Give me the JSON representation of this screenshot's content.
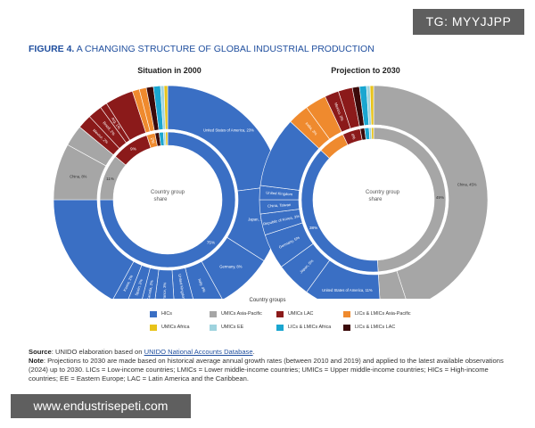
{
  "tag": "TG: MYYJJPP",
  "figure": {
    "label": "FIGURE 4.",
    "title": "A CHANGING STRUCTURE OF GLOBAL INDUSTRIAL PRODUCTION"
  },
  "colors": {
    "HICs": "#3a6fc4",
    "UMICs Asia-Pacific": "#a6a6a6",
    "UMICs LAC": "#8b1a1a",
    "LICs & LMICs Asia-Pacific": "#ef8a2e",
    "UMICs Africa": "#e8c31a",
    "UMICs EE": "#9ed3de",
    "LICs & LMICs Africa": "#1aa6d0",
    "LICs & LMICs LAC": "#3b0a0a"
  },
  "chart_data": [
    {
      "type": "pie",
      "title": "Situation in 2000",
      "center_label": "Country group share",
      "inner_ring": [
        {
          "group": "HICs",
          "value": 75,
          "label": "75%"
        },
        {
          "group": "UMICs Asia-Pacific",
          "value": 11,
          "label": "11%"
        },
        {
          "group": "UMICs LAC",
          "value": 9,
          "label": "9%"
        },
        {
          "group": "LICs & LMICs Asia-Pacific",
          "value": 2,
          "label": "2%"
        },
        {
          "group": "LICs & LMICs LAC",
          "value": 1,
          "label": ""
        },
        {
          "group": "LICs & LMICs Africa",
          "value": 1,
          "label": ""
        },
        {
          "group": "UMICs EE",
          "value": 0.5,
          "label": ""
        },
        {
          "group": "UMICs Africa",
          "value": 0.5,
          "label": ""
        }
      ],
      "outer_ring": [
        {
          "group": "HICs",
          "value": 23,
          "label": "United States of America, 23%"
        },
        {
          "group": "HICs",
          "value": 11,
          "label": "Japan, 11%"
        },
        {
          "group": "HICs",
          "value": 8,
          "label": "Germany, 8%"
        },
        {
          "group": "HICs",
          "value": 4,
          "label": "Italy, 4%"
        },
        {
          "group": "HICs",
          "value": 3,
          "label": "United Kingdom, 3%"
        },
        {
          "group": "HICs",
          "value": 3,
          "label": "France, 3%"
        },
        {
          "group": "HICs",
          "value": 2,
          "label": "Canada, 2%"
        },
        {
          "group": "HICs",
          "value": 2,
          "label": "Spain, 2%"
        },
        {
          "group": "HICs",
          "value": 2,
          "label": "Korea, 2%"
        },
        {
          "group": "HICs",
          "value": 17,
          "label": ""
        },
        {
          "group": "UMICs Asia-Pacific",
          "value": 8,
          "label": "China, 8%"
        },
        {
          "group": "UMICs Asia-Pacific",
          "value": 3,
          "label": ""
        },
        {
          "group": "UMICs LAC",
          "value": 2,
          "label": "Mexico, 2%"
        },
        {
          "group": "UMICs LAC",
          "value": 2,
          "label": "Brazil, 2%"
        },
        {
          "group": "UMICs LAC",
          "value": 1,
          "label": "Arg, 1%"
        },
        {
          "group": "UMICs LAC",
          "value": 4,
          "label": ""
        },
        {
          "group": "LICs & LMICs Asia-Pacific",
          "value": 1,
          "label": ""
        },
        {
          "group": "LICs & LMICs Asia-Pacific",
          "value": 1,
          "label": ""
        },
        {
          "group": "LICs & LMICs LAC",
          "value": 1,
          "label": ""
        },
        {
          "group": "LICs & LMICs Africa",
          "value": 1,
          "label": ""
        },
        {
          "group": "UMICs EE",
          "value": 0.5,
          "label": ""
        },
        {
          "group": "UMICs Africa",
          "value": 0.5,
          "label": ""
        }
      ]
    },
    {
      "type": "pie",
      "title": "Projection to 2030",
      "center_label": "Country group share",
      "inner_ring": [
        {
          "group": "UMICs Asia-Pacific",
          "value": 49,
          "label": "49%"
        },
        {
          "group": "HICs",
          "value": 38,
          "label": "38%"
        },
        {
          "group": "LICs & LMICs Asia-Pacific",
          "value": 6,
          "label": ""
        },
        {
          "group": "UMICs LAC",
          "value": 4,
          "label": "4%"
        },
        {
          "group": "LICs & LMICs LAC",
          "value": 1,
          "label": ""
        },
        {
          "group": "LICs & LMICs Africa",
          "value": 1,
          "label": ""
        },
        {
          "group": "UMICs EE",
          "value": 0.5,
          "label": ""
        },
        {
          "group": "UMICs Africa",
          "value": 0.5,
          "label": ""
        }
      ],
      "outer_ring": [
        {
          "group": "UMICs Asia-Pacific",
          "value": 45,
          "label": "China, 45%"
        },
        {
          "group": "UMICs Asia-Pacific",
          "value": 4,
          "label": ""
        },
        {
          "group": "HICs",
          "value": 11,
          "label": "United States of America, 11%"
        },
        {
          "group": "HICs",
          "value": 5,
          "label": "Japan, 5%"
        },
        {
          "group": "HICs",
          "value": 5,
          "label": "Germany, 5%"
        },
        {
          "group": "HICs",
          "value": 3,
          "label": "Republic of Korea, 3%"
        },
        {
          "group": "HICs",
          "value": 2,
          "label": "China, Taiwan"
        },
        {
          "group": "HICs",
          "value": 2,
          "label": "United Kingdom"
        },
        {
          "group": "HICs",
          "value": 10,
          "label": ""
        },
        {
          "group": "LICs & LMICs Asia-Pacific",
          "value": 3,
          "label": "India, 3%"
        },
        {
          "group": "LICs & LMICs Asia-Pacific",
          "value": 3,
          "label": ""
        },
        {
          "group": "UMICs LAC",
          "value": 2,
          "label": "Mexico, 2%"
        },
        {
          "group": "UMICs LAC",
          "value": 2,
          "label": ""
        },
        {
          "group": "LICs & LMICs LAC",
          "value": 1,
          "label": ""
        },
        {
          "group": "LICs & LMICs Africa",
          "value": 1,
          "label": ""
        },
        {
          "group": "UMICs EE",
          "value": 0.5,
          "label": ""
        },
        {
          "group": "UMICs Africa",
          "value": 0.5,
          "label": ""
        }
      ]
    }
  ],
  "legend": {
    "title": "Country groups",
    "items": [
      "HICs",
      "UMICs Asia-Pacific",
      "UMICs LAC",
      "LICs & LMICs Asia-Pacific",
      "UMICs Africa",
      "UMICs EE",
      "LICs & LMICs Africa",
      "LICs & LMICs LAC"
    ]
  },
  "notes": {
    "source_label": "Source",
    "source_text": ": UNIDO elaboration based on ",
    "source_link": "UNIDO National Accounts Database",
    "source_end": ".",
    "note_label": "Note",
    "note_text": ": Projections to 2030 are made based on historical average annual growth rates (between 2010 and 2019) and applied to the latest available observations (2024) up to 2030. LICs = Low-income countries; LMICs = Lower middle-income countries; UMICs = Upper middle-income countries; HICs = High-income countries; EE = Eastern Europe; LAC = Latin America and the Caribbean."
  },
  "watermark": "www.endustrisepeti.com"
}
